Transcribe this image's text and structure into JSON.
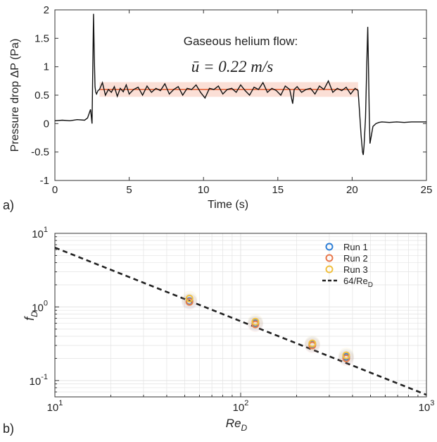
{
  "chart_data": [
    {
      "type": "line",
      "panel_label": "a)",
      "xlabel": "Time (s)",
      "ylabel": "Pressure drop ΔP (Pa)",
      "xlim": [
        0,
        25
      ],
      "ylim": [
        -1,
        2
      ],
      "xticks": [
        0,
        5,
        10,
        15,
        20,
        25
      ],
      "yticks": [
        -1,
        -0.5,
        0,
        0.5,
        1,
        1.5,
        2
      ],
      "grid": false,
      "annotation_title": "Gaseous helium flow:",
      "annotation_eq": "ū = 0.22 m/s",
      "series": [
        {
          "color": "#111111",
          "x": [
            0,
            0.5,
            1.0,
            1.5,
            2.0,
            2.2,
            2.4,
            2.5,
            2.6,
            2.65,
            2.7,
            2.75,
            2.8,
            2.9,
            3.0,
            3.2,
            3.4,
            3.6,
            3.8,
            4.0,
            4.2,
            4.4,
            4.6,
            4.8,
            5.0,
            5.3,
            5.6,
            5.9,
            6.2,
            6.5,
            6.8,
            7.1,
            7.4,
            7.7,
            8.0,
            8.3,
            8.6,
            8.9,
            9.2,
            9.5,
            9.8,
            10.1,
            10.4,
            10.7,
            11.0,
            11.3,
            11.6,
            11.9,
            12.2,
            12.5,
            12.8,
            13.1,
            13.4,
            13.7,
            14.0,
            14.3,
            14.6,
            14.9,
            15.2,
            15.5,
            15.8,
            16.0,
            16.1,
            16.3,
            16.6,
            16.9,
            17.2,
            17.5,
            17.8,
            18.1,
            18.4,
            18.7,
            19.0,
            19.3,
            19.6,
            19.9,
            20.2,
            20.4,
            20.5,
            20.6,
            20.7,
            20.75,
            20.8,
            20.9,
            21.0,
            21.05,
            21.1,
            21.15,
            21.2,
            21.3,
            21.4,
            21.6,
            21.8,
            22.0,
            22.5,
            23.0,
            23.5,
            24.0,
            24.5,
            25.0
          ],
          "y": [
            0.05,
            0.06,
            0.05,
            0.07,
            0.06,
            0.1,
            0.25,
            0.0,
            1.93,
            1.2,
            0.65,
            0.55,
            0.52,
            0.58,
            0.6,
            0.72,
            0.5,
            0.6,
            0.55,
            0.65,
            0.48,
            0.62,
            0.56,
            0.68,
            0.52,
            0.6,
            0.64,
            0.5,
            0.66,
            0.55,
            0.62,
            0.58,
            0.7,
            0.52,
            0.6,
            0.65,
            0.5,
            0.62,
            0.6,
            0.68,
            0.55,
            0.45,
            0.62,
            0.6,
            0.66,
            0.52,
            0.6,
            0.62,
            0.55,
            0.68,
            0.58,
            0.5,
            0.64,
            0.6,
            0.72,
            0.55,
            0.62,
            0.58,
            0.5,
            0.66,
            0.6,
            0.35,
            0.6,
            0.65,
            0.55,
            0.6,
            0.62,
            0.52,
            0.66,
            0.6,
            0.75,
            0.55,
            0.62,
            0.58,
            0.64,
            0.52,
            0.62,
            0.58,
            0.2,
            -0.2,
            -0.5,
            -0.55,
            -0.4,
            0.1,
            1.2,
            1.7,
            1.0,
            0.2,
            -0.35,
            -0.2,
            -0.05,
            0.0,
            0.02,
            0.03,
            0.02,
            0.03,
            0.02,
            0.03,
            0.03,
            0.03
          ]
        },
        {
          "color": "#f4a48a",
          "x": [
            3.0,
            3.5,
            4.0,
            4.5,
            5.0,
            5.5,
            6.0,
            6.5,
            7.0,
            7.5,
            8.0,
            8.5,
            9.0,
            9.5,
            10.0,
            10.5,
            11.0,
            11.5,
            12.0,
            12.5,
            13.0,
            13.5,
            14.0,
            14.5,
            15.0,
            15.5,
            16.0,
            16.5,
            17.0,
            17.5,
            18.0,
            18.5,
            19.0,
            19.5,
            20.0,
            20.4
          ],
          "y": [
            0.6,
            0.6,
            0.6,
            0.6,
            0.6,
            0.6,
            0.6,
            0.6,
            0.6,
            0.6,
            0.6,
            0.6,
            0.6,
            0.6,
            0.6,
            0.6,
            0.6,
            0.6,
            0.6,
            0.6,
            0.6,
            0.6,
            0.6,
            0.6,
            0.6,
            0.6,
            0.6,
            0.6,
            0.6,
            0.6,
            0.6,
            0.6,
            0.6,
            0.6,
            0.6,
            0.6
          ],
          "band": 0.13
        }
      ]
    },
    {
      "type": "scatter",
      "panel_label": "b)",
      "xlabel": "Re",
      "xlabel_sub": "D",
      "ylabel": "f",
      "ylabel_sub": "D",
      "xscale": "log",
      "yscale": "log",
      "xlim": [
        10,
        1000
      ],
      "ylim": [
        0.06,
        10
      ],
      "xtick_labels": [
        "10",
        "10",
        "10"
      ],
      "xtick_exps": [
        "1",
        "2",
        "3"
      ],
      "ytick_labels": [
        "10",
        "10",
        "10"
      ],
      "ytick_exps": [
        "-1",
        "0",
        "1"
      ],
      "grid": true,
      "legend_position": "top-right",
      "series": [
        {
          "name": "Run 1",
          "color": "#2f7fd6",
          "x": [
            53,
            120,
            243,
            370
          ],
          "y": [
            1.2,
            0.6,
            0.31,
            0.21
          ]
        },
        {
          "name": "Run 2",
          "color": "#e8784c",
          "x": [
            53,
            120,
            243,
            370
          ],
          "y": [
            1.17,
            0.58,
            0.3,
            0.2
          ]
        },
        {
          "name": "Run 3",
          "color": "#f0c040",
          "x": [
            53,
            120,
            243,
            370
          ],
          "y": [
            1.3,
            0.63,
            0.32,
            0.22
          ]
        }
      ],
      "fit": {
        "label": "64/Re",
        "label_sub": "D",
        "color": "#222222",
        "coefficient": 64
      }
    }
  ]
}
